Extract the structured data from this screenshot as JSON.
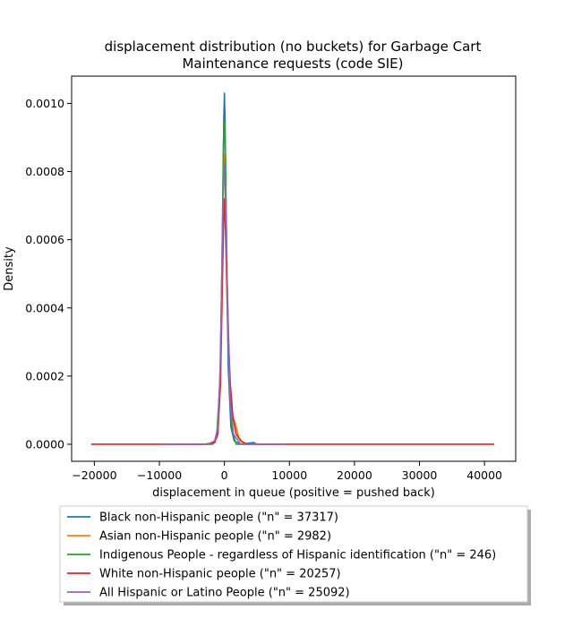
{
  "chart_data": {
    "type": "line",
    "title_lines": [
      "displacement distribution (no buckets)  for Garbage Cart",
      "Maintenance requests (code SIE)"
    ],
    "xlabel": "displacement in queue (positive = pushed back)",
    "ylabel": "Density",
    "xlim": [
      -23500,
      44800
    ],
    "ylim": [
      -5e-05,
      0.00108
    ],
    "xticks": [
      -20000,
      -10000,
      0,
      10000,
      20000,
      30000,
      40000
    ],
    "xtick_labels": [
      "−20000",
      "−10000",
      "0",
      "10000",
      "20000",
      "30000",
      "40000"
    ],
    "yticks": [
      0,
      0.0002,
      0.0004,
      0.0006,
      0.0008,
      0.001
    ],
    "ytick_labels": [
      "0.0000",
      "0.0002",
      "0.0004",
      "0.0006",
      "0.0008",
      "0.0010"
    ],
    "grid": false,
    "legend_position": "below",
    "series": [
      {
        "name": "Black non-Hispanic people (\"n\" = 37317)",
        "color": "#1f77b4",
        "points": [
          [
            -9000,
            0
          ],
          [
            -2500,
            0
          ],
          [
            -1500,
            5e-06
          ],
          [
            -1000,
            4e-05
          ],
          [
            -600,
            0.00022
          ],
          [
            -300,
            0.0006
          ],
          [
            -100,
            0.00095
          ],
          [
            0,
            0.00103
          ],
          [
            100,
            0.00095
          ],
          [
            300,
            0.0006
          ],
          [
            600,
            0.00022
          ],
          [
            1000,
            5e-05
          ],
          [
            1500,
            1e-05
          ],
          [
            2500,
            0
          ],
          [
            4500,
            5e-06
          ],
          [
            5000,
            0
          ],
          [
            9000,
            0
          ]
        ]
      },
      {
        "name": "Asian non-Hispanic people (\"n\" = 2982)",
        "color": "#ff7f0e",
        "points": [
          [
            -9500,
            0
          ],
          [
            -2500,
            0
          ],
          [
            -1500,
            5e-06
          ],
          [
            -1000,
            4e-05
          ],
          [
            -600,
            0.00022
          ],
          [
            -300,
            0.00058
          ],
          [
            -100,
            0.00082
          ],
          [
            0,
            0.00085
          ],
          [
            200,
            0.00075
          ],
          [
            500,
            0.0004
          ],
          [
            900,
            0.00015
          ],
          [
            1300,
            8e-05
          ],
          [
            1700,
            6e-05
          ],
          [
            2200,
            2e-05
          ],
          [
            3000,
            0
          ],
          [
            9500,
            0
          ]
        ]
      },
      {
        "name": "Indigenous People - regardless of Hispanic identification (\"n\" = 246)",
        "color": "#2ca02c",
        "points": [
          [
            -4000,
            0
          ],
          [
            -1800,
            0
          ],
          [
            -1200,
            2e-05
          ],
          [
            -700,
            0.00018
          ],
          [
            -400,
            0.0005
          ],
          [
            -150,
            0.00088
          ],
          [
            0,
            0.00095
          ],
          [
            150,
            0.00085
          ],
          [
            400,
            0.0005
          ],
          [
            800,
            0.00018
          ],
          [
            1200,
            4e-05
          ],
          [
            1800,
            0
          ],
          [
            4000,
            0
          ]
        ]
      },
      {
        "name": "White non-Hispanic people (\"n\" = 20257)",
        "color": "#d62728",
        "points": [
          [
            -20500,
            0
          ],
          [
            -3000,
            0
          ],
          [
            -1500,
            5e-06
          ],
          [
            -1000,
            3e-05
          ],
          [
            -600,
            0.00018
          ],
          [
            -300,
            0.00048
          ],
          [
            -100,
            0.00068
          ],
          [
            0,
            0.00072
          ],
          [
            200,
            0.0006
          ],
          [
            500,
            0.00035
          ],
          [
            900,
            0.00018
          ],
          [
            1300,
            8e-05
          ],
          [
            1800,
            3e-05
          ],
          [
            2500,
            1e-05
          ],
          [
            3500,
            0
          ],
          [
            41500,
            0
          ]
        ]
      },
      {
        "name": "All Hispanic or Latino People (\"n\" = 25092)",
        "color": "#9467bd",
        "points": [
          [
            -9500,
            0
          ],
          [
            -2500,
            0
          ],
          [
            -1500,
            1e-05
          ],
          [
            -1000,
            5e-05
          ],
          [
            -600,
            0.00025
          ],
          [
            -300,
            0.00062
          ],
          [
            -100,
            0.0008
          ],
          [
            0,
            0.00082
          ],
          [
            200,
            0.0007
          ],
          [
            500,
            0.00038
          ],
          [
            900,
            0.00012
          ],
          [
            1400,
            3e-05
          ],
          [
            2500,
            0
          ],
          [
            9500,
            0
          ]
        ]
      }
    ]
  }
}
